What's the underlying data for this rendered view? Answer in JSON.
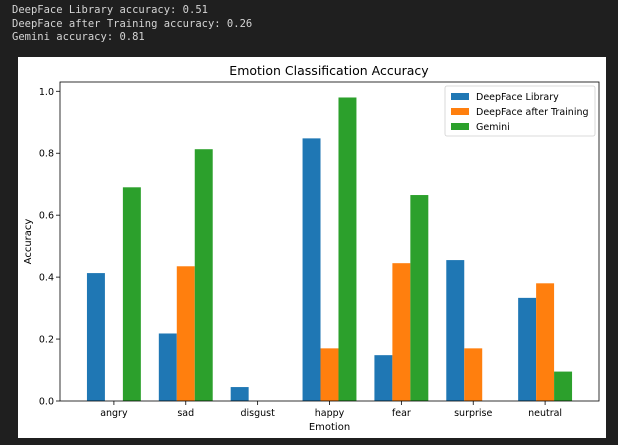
{
  "console": {
    "lines": [
      "DeepFace Library accuracy: 0.51",
      "DeepFace after Training accuracy: 0.26",
      "Gemini accuracy: 0.81"
    ]
  },
  "chart_data": {
    "type": "bar",
    "title": "Emotion Classification Accuracy",
    "xlabel": "Emotion",
    "ylabel": "Accuracy",
    "ylim": [
      0,
      1.03
    ],
    "yticks": [
      0.0,
      0.2,
      0.4,
      0.6,
      0.8,
      1.0
    ],
    "categories": [
      "angry",
      "sad",
      "disgust",
      "happy",
      "fear",
      "surprise",
      "neutral"
    ],
    "series": [
      {
        "name": "DeepFace Library",
        "color": "#1f77b4",
        "values": [
          0.413,
          0.218,
          0.045,
          0.848,
          0.148,
          0.455,
          0.333
        ]
      },
      {
        "name": "DeepFace after Training",
        "color": "#ff7f0e",
        "values": [
          0.0,
          0.435,
          0.0,
          0.17,
          0.445,
          0.17,
          0.38
        ]
      },
      {
        "name": "Gemini",
        "color": "#2ca02c",
        "values": [
          0.69,
          0.813,
          0.0,
          0.98,
          0.665,
          0.0,
          0.095
        ]
      }
    ],
    "legend": "top-right",
    "grid": false
  }
}
